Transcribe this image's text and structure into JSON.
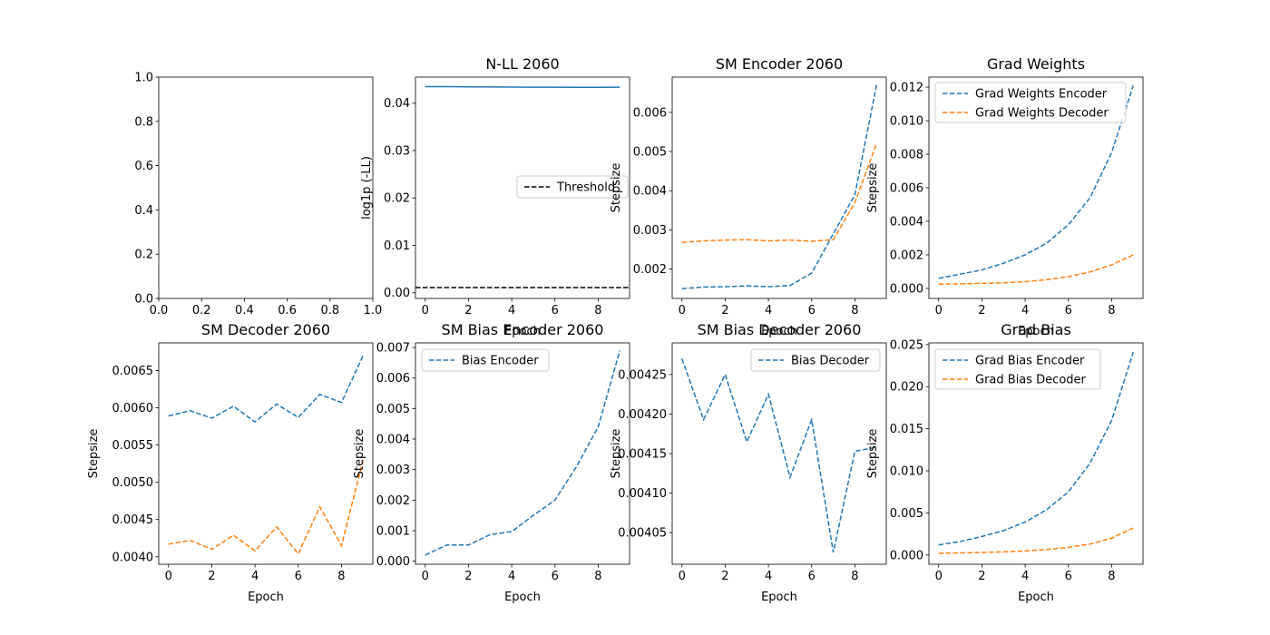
{
  "chart_data": [
    {
      "type": "line",
      "title": "",
      "xlabel": "",
      "ylabel": "",
      "xlim": [
        0,
        1
      ],
      "ylim": [
        0,
        1
      ],
      "xticks": [
        0.0,
        0.2,
        0.4,
        0.6,
        0.8,
        1.0
      ],
      "xtick_labels": [
        "0.0",
        "0.2",
        "0.4",
        "0.6",
        "0.8",
        "1.0"
      ],
      "yticks": [
        0.0,
        0.2,
        0.4,
        0.6,
        0.8,
        1.0
      ],
      "ytick_labels": [
        "0.0",
        "0.2",
        "0.4",
        "0.6",
        "0.8",
        "1.0"
      ],
      "series": [],
      "legend": null
    },
    {
      "type": "line",
      "title": "N-LL 2060",
      "xlabel": "Epoch",
      "ylabel": "log1p (-LL)",
      "xlim": [
        -0.45,
        9.45
      ],
      "ylim": [
        -0.0012,
        0.0455
      ],
      "xticks": [
        0,
        2,
        4,
        6,
        8
      ],
      "xtick_labels": [
        "0",
        "2",
        "4",
        "6",
        "8"
      ],
      "yticks": [
        0.0,
        0.01,
        0.02,
        0.03,
        0.04
      ],
      "ytick_labels": [
        "0.00",
        "0.01",
        "0.02",
        "0.03",
        "0.04"
      ],
      "series": [
        {
          "color": "#1f77b4",
          "dash": "solid",
          "x": [
            0,
            1,
            2,
            3,
            4,
            5,
            6,
            7,
            8,
            9
          ],
          "y": [
            0.0435,
            0.04348,
            0.04345,
            0.04342,
            0.0434,
            0.04338,
            0.04336,
            0.04335,
            0.04335,
            0.04337
          ]
        },
        {
          "name": "Threshold",
          "color": "#000000",
          "dash": "dashed",
          "x": [
            -0.45,
            9.45
          ],
          "y": [
            0.0011,
            0.0011
          ]
        }
      ],
      "legend": {
        "placement": "center-right",
        "entries": [
          "Threshold"
        ]
      }
    },
    {
      "type": "line",
      "title": "SM Encoder 2060",
      "xlabel": "Epoch",
      "ylabel": "Stepsize",
      "xlim": [
        -0.45,
        9.45
      ],
      "ylim": [
        0.00125,
        0.0069
      ],
      "xticks": [
        0,
        2,
        4,
        6,
        8
      ],
      "xtick_labels": [
        "0",
        "2",
        "4",
        "6",
        "8"
      ],
      "yticks": [
        0.002,
        0.003,
        0.004,
        0.005,
        0.006
      ],
      "ytick_labels": [
        "0.002",
        "0.003",
        "0.004",
        "0.005",
        "0.006"
      ],
      "series": [
        {
          "color": "#1f77b4",
          "dash": "dashed",
          "x": [
            0,
            1,
            2,
            3,
            4,
            5,
            6,
            7,
            8,
            9
          ],
          "y": [
            0.0015,
            0.00154,
            0.00155,
            0.00157,
            0.00155,
            0.00158,
            0.0019,
            0.0029,
            0.0039,
            0.0067
          ]
        },
        {
          "color": "#ff7f0e",
          "dash": "dashed",
          "x": [
            0,
            1,
            2,
            3,
            4,
            5,
            6,
            7,
            8,
            9
          ],
          "y": [
            0.00268,
            0.00272,
            0.00274,
            0.00275,
            0.00272,
            0.00274,
            0.00271,
            0.00275,
            0.0037,
            0.0052
          ]
        }
      ],
      "legend": null
    },
    {
      "type": "line",
      "title": "Grad Weights",
      "xlabel": "Epoch",
      "ylabel": "Stepsize",
      "xlim": [
        -0.45,
        9.45
      ],
      "ylim": [
        -0.0006,
        0.0126
      ],
      "xticks": [
        0,
        2,
        4,
        6,
        8
      ],
      "xtick_labels": [
        "0",
        "2",
        "4",
        "6",
        "8"
      ],
      "yticks": [
        0.0,
        0.002,
        0.004,
        0.006,
        0.008,
        0.01,
        0.012
      ],
      "ytick_labels": [
        "0.000",
        "0.002",
        "0.004",
        "0.006",
        "0.008",
        "0.010",
        "0.012"
      ],
      "series": [
        {
          "name": "Grad Weights Encoder",
          "color": "#1f77b4",
          "dash": "dashed",
          "x": [
            0,
            1,
            2,
            3,
            4,
            5,
            6,
            7,
            8,
            9
          ],
          "y": [
            0.0006,
            0.00085,
            0.0011,
            0.0015,
            0.002,
            0.0027,
            0.0038,
            0.0054,
            0.0081,
            0.0121
          ]
        },
        {
          "name": "Grad Weights Decoder",
          "color": "#ff7f0e",
          "dash": "dashed",
          "x": [
            0,
            1,
            2,
            3,
            4,
            5,
            6,
            7,
            8,
            9
          ],
          "y": [
            0.00025,
            0.00027,
            0.0003,
            0.00033,
            0.0004,
            0.00052,
            0.0007,
            0.00098,
            0.0014,
            0.002
          ]
        }
      ],
      "legend": {
        "placement": "top-left",
        "entries": [
          "Grad Weights Encoder",
          "Grad Weights Decoder"
        ]
      }
    },
    {
      "type": "line",
      "title": "SM Decoder 2060",
      "xlabel": "Epoch",
      "ylabel": "Stepsize",
      "xlim": [
        -0.45,
        9.45
      ],
      "ylim": [
        0.0039,
        0.00687
      ],
      "xticks": [
        0,
        2,
        4,
        6,
        8
      ],
      "xtick_labels": [
        "0",
        "2",
        "4",
        "6",
        "8"
      ],
      "yticks": [
        0.004,
        0.0045,
        0.005,
        0.0055,
        0.006,
        0.0065
      ],
      "ytick_labels": [
        "0.0040",
        "0.0045",
        "0.0050",
        "0.0055",
        "0.0060",
        "0.0065"
      ],
      "series": [
        {
          "color": "#1f77b4",
          "dash": "dashed",
          "x": [
            0,
            1,
            2,
            3,
            4,
            5,
            6,
            7,
            8,
            9
          ],
          "y": [
            0.00589,
            0.00596,
            0.00586,
            0.00602,
            0.00581,
            0.00605,
            0.00587,
            0.00618,
            0.00607,
            0.0067
          ]
        },
        {
          "color": "#ff7f0e",
          "dash": "dashed",
          "x": [
            0,
            1,
            2,
            3,
            4,
            5,
            6,
            7,
            8,
            9
          ],
          "y": [
            0.00417,
            0.00422,
            0.0041,
            0.00429,
            0.00408,
            0.0044,
            0.00404,
            0.00467,
            0.00415,
            0.0053
          ]
        }
      ],
      "legend": null
    },
    {
      "type": "line",
      "title": "SM Bias Encoder 2060",
      "xlabel": "Epoch",
      "ylabel": "Stepsize",
      "xlim": [
        -0.45,
        9.45
      ],
      "ylim": [
        -0.0001,
        0.00715
      ],
      "xticks": [
        0,
        2,
        4,
        6,
        8
      ],
      "xtick_labels": [
        "0",
        "2",
        "4",
        "6",
        "8"
      ],
      "yticks": [
        0.0,
        0.001,
        0.002,
        0.003,
        0.004,
        0.005,
        0.006,
        0.007
      ],
      "ytick_labels": [
        "0.000",
        "0.001",
        "0.002",
        "0.003",
        "0.004",
        "0.005",
        "0.006",
        "0.007"
      ],
      "series": [
        {
          "name": "Bias Encoder",
          "color": "#1f77b4",
          "dash": "dashed",
          "x": [
            0,
            1,
            2,
            3,
            4,
            5,
            6,
            7,
            8,
            9
          ],
          "y": [
            0.0002,
            0.00053,
            0.00053,
            0.00087,
            0.00097,
            0.0015,
            0.002,
            0.0031,
            0.0044,
            0.0069
          ]
        }
      ],
      "legend": {
        "placement": "top-left",
        "entries": [
          "Bias Encoder"
        ]
      }
    },
    {
      "type": "line",
      "title": "SM Bias Decoder 2060",
      "xlabel": "Epoch",
      "ylabel": "Stepsize",
      "xlim": [
        -0.45,
        9.45
      ],
      "ylim": [
        0.00401,
        0.00429
      ],
      "xticks": [
        0,
        2,
        4,
        6,
        8
      ],
      "xtick_labels": [
        "0",
        "2",
        "4",
        "6",
        "8"
      ],
      "yticks": [
        0.00405,
        0.0041,
        0.00415,
        0.0042,
        0.00425
      ],
      "ytick_labels": [
        "0.00405",
        "0.00410",
        "0.00415",
        "0.00420",
        "0.00425"
      ],
      "series": [
        {
          "name": "Bias Decoder",
          "color": "#1f77b4",
          "dash": "dashed",
          "x": [
            0,
            1,
            2,
            3,
            4,
            5,
            6,
            7,
            8,
            9
          ],
          "y": [
            0.00427,
            0.004193,
            0.00425,
            0.004165,
            0.004225,
            0.00412,
            0.004193,
            0.004025,
            0.004153,
            0.004158
          ]
        }
      ],
      "legend": {
        "placement": "top-right",
        "entries": [
          "Bias Decoder"
        ]
      }
    },
    {
      "type": "line",
      "title": "Grad Bias",
      "xlabel": "Epoch",
      "ylabel": "Stepsize",
      "xlim": [
        -0.45,
        9.45
      ],
      "ylim": [
        -0.0011,
        0.0252
      ],
      "xticks": [
        0,
        2,
        4,
        6,
        8
      ],
      "xtick_labels": [
        "0",
        "2",
        "4",
        "6",
        "8"
      ],
      "yticks": [
        0.0,
        0.005,
        0.01,
        0.015,
        0.02,
        0.025
      ],
      "ytick_labels": [
        "0.000",
        "0.005",
        "0.010",
        "0.015",
        "0.020",
        "0.025"
      ],
      "series": [
        {
          "name": "Grad Bias Encoder",
          "color": "#1f77b4",
          "dash": "dashed",
          "x": [
            0,
            1,
            2,
            3,
            4,
            5,
            6,
            7,
            8,
            9
          ],
          "y": [
            0.0012,
            0.0016,
            0.0022,
            0.0029,
            0.0039,
            0.0054,
            0.0075,
            0.0109,
            0.016,
            0.0241
          ]
        },
        {
          "name": "Grad Bias Decoder",
          "color": "#ff7f0e",
          "dash": "dashed",
          "x": [
            0,
            1,
            2,
            3,
            4,
            5,
            6,
            7,
            8,
            9
          ],
          "y": [
            0.0002,
            0.00025,
            0.0003,
            0.00037,
            0.00048,
            0.00065,
            0.0009,
            0.0013,
            0.002,
            0.0032
          ]
        }
      ],
      "legend": {
        "placement": "top-left",
        "entries": [
          "Grad Bias Encoder",
          "Grad Bias Decoder"
        ]
      }
    }
  ]
}
